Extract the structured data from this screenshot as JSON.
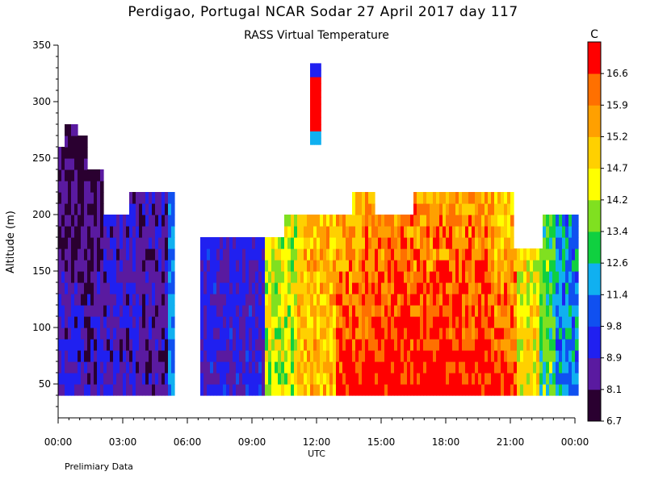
{
  "chart_data": {
    "type": "heatmap",
    "title": "Perdigao, Portugal   NCAR Sodar   27 April 2017   day 117",
    "subtitle": "RASS Virtual Temperature",
    "xlabel": "UTC",
    "ylabel": "Altitude (m)",
    "footnote": "Prelimiary Data",
    "colorbar_unit": "C",
    "xlim": [
      0,
      24
    ],
    "ylim": [
      20,
      350
    ],
    "x_ticks": [
      {
        "value": 0,
        "label": "00:00"
      },
      {
        "value": 3,
        "label": "03:00"
      },
      {
        "value": 6,
        "label": "06:00"
      },
      {
        "value": 9,
        "label": "09:00"
      },
      {
        "value": 12,
        "label": "12:00"
      },
      {
        "value": 15,
        "label": "15:00"
      },
      {
        "value": 18,
        "label": "18:00"
      },
      {
        "value": 21,
        "label": "21:00"
      },
      {
        "value": 24,
        "label": "00:00"
      }
    ],
    "y_ticks": [
      {
        "value": 50,
        "label": "50"
      },
      {
        "value": 100,
        "label": "100"
      },
      {
        "value": 150,
        "label": "150"
      },
      {
        "value": 200,
        "label": "200"
      },
      {
        "value": 250,
        "label": "250"
      },
      {
        "value": 300,
        "label": "300"
      },
      {
        "value": 350,
        "label": "350"
      }
    ],
    "colorbar_levels": [
      "6.7",
      "8.1",
      "8.9",
      "9.8",
      "11.4",
      "12.6",
      "13.4",
      "14.2",
      "14.7",
      "15.2",
      "15.9",
      "16.6"
    ],
    "colorbar_colors": [
      "#2a0030",
      "#5a1aa0",
      "#2020f0",
      "#1050f0",
      "#10b0f0",
      "#10d040",
      "#80e020",
      "#ffff00",
      "#ffd000",
      "#ffa000",
      "#ff7000",
      "#ff0000"
    ]
  }
}
